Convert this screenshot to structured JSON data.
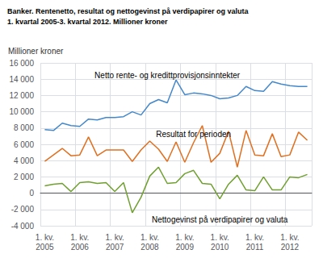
{
  "chart_data": {
    "type": "line",
    "title": "Banker. Rentenetto, resultat og nettogevinst på verdipapirer og valuta",
    "subtitle": "1. kvartal 2005-3. kvartal 2012. Millioner kroner",
    "y_label": "Millioner kroner",
    "categories": [
      "1. kv.\n2005",
      null,
      null,
      null,
      "1. kv.\n2006",
      null,
      null,
      null,
      "1. kv.\n2007",
      null,
      null,
      null,
      "1. kv.\n2008",
      null,
      null,
      null,
      "1. kv.\n2009",
      null,
      null,
      null,
      "1. kv.\n2010",
      null,
      null,
      null,
      "1. kv.\n2011",
      null,
      null,
      null,
      "1. kv.\n2012",
      null,
      null
    ],
    "series": [
      {
        "color": "#4488CC",
        "values": [
          7800,
          7700,
          8600,
          8300,
          8200,
          9100,
          9000,
          9300,
          9300,
          9400,
          10000,
          9600,
          11000,
          11500,
          11100,
          13900,
          12100,
          12300,
          12200,
          12000,
          11600,
          11700,
          12000,
          13100,
          12600,
          12500,
          13700,
          13400,
          13200,
          13100,
          13100
        ]
      },
      {
        "color": "#E07020",
        "values": [
          3900,
          4700,
          5500,
          4600,
          4700,
          6900,
          4600,
          5300,
          5300,
          5300,
          3900,
          5300,
          6400,
          5400,
          3900,
          6300,
          3800,
          6200,
          8300,
          3800,
          4900,
          7600,
          3200,
          7700,
          4700,
          4600,
          7300,
          4500,
          4700,
          7500,
          6500
        ]
      },
      {
        "color": "#70A030",
        "values": [
          900,
          1100,
          1200,
          200,
          1300,
          1400,
          1200,
          1300,
          200,
          1300,
          -2400,
          -500,
          2100,
          3200,
          1200,
          1300,
          2400,
          2800,
          1200,
          1100,
          -700,
          1100,
          2200,
          400,
          300,
          2000,
          400,
          400,
          2000,
          1900,
          2300
        ]
      }
    ],
    "annotations": [
      {
        "text": "Netto rente- og kredittprovisjonsinntekter",
        "x": 14,
        "y": 14500
      },
      {
        "text": "Resultat for perioden",
        "x": 17,
        "y": 7200
      },
      {
        "text": "Nettogevinst på verdipapirer og valuta",
        "x": 20,
        "y": -3300
      }
    ],
    "ylim": [
      -4000,
      16000
    ],
    "yticks": [
      {
        "value": -4000,
        "label": "-4 000"
      },
      {
        "value": -2000,
        "label": "-2 000"
      },
      0,
      {
        "value": 2000,
        "label": "2 000"
      },
      {
        "value": 4000,
        "label": "4 000"
      },
      {
        "value": 6000,
        "label": "6 000"
      },
      {
        "value": 8000,
        "label": "8 000"
      },
      {
        "value": 10000,
        "label": "10 000"
      },
      {
        "value": 12000,
        "label": "12 000"
      },
      {
        "value": 14000,
        "label": "14 000"
      },
      {
        "value": 16000,
        "label": "16 000"
      }
    ],
    "grid": true
  }
}
